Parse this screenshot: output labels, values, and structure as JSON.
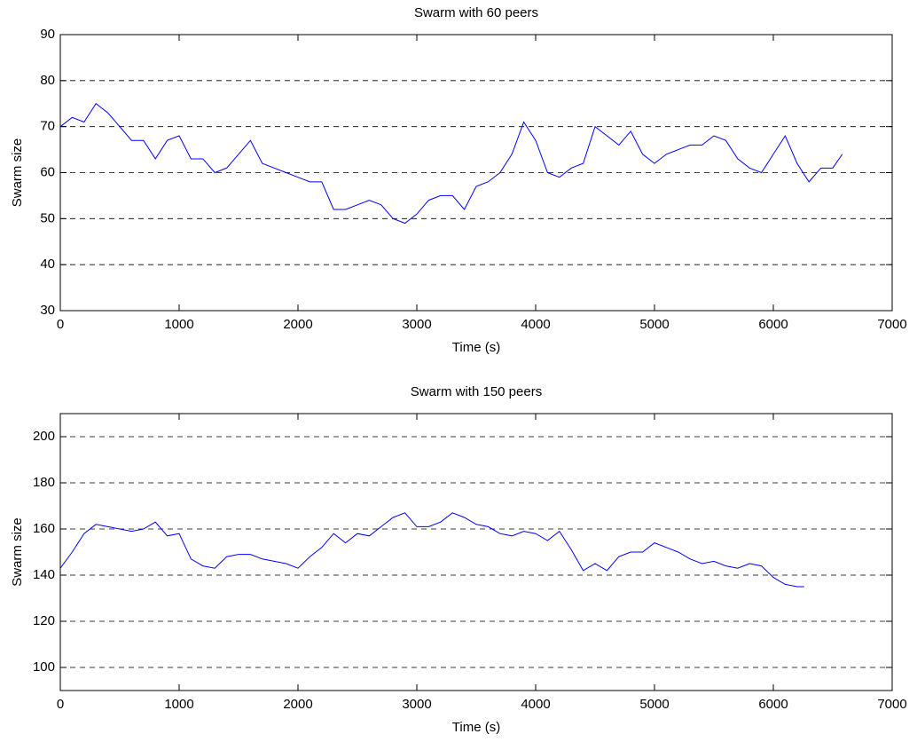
{
  "chart_data": [
    {
      "type": "line",
      "title": "Swarm with 60 peers",
      "x_label": "Time (s)",
      "y_label": "Swarm size",
      "x": [
        0,
        100,
        200,
        300,
        400,
        500,
        600,
        700,
        800,
        900,
        1000,
        1100,
        1200,
        1300,
        1400,
        1500,
        1600,
        1700,
        1800,
        1900,
        2000,
        2100,
        2200,
        2300,
        2400,
        2500,
        2600,
        2700,
        2800,
        2900,
        3000,
        3100,
        3200,
        3300,
        3400,
        3500,
        3600,
        3700,
        3800,
        3900,
        4000,
        4100,
        4200,
        4300,
        4400,
        4500,
        4600,
        4700,
        4800,
        4900,
        5000,
        5100,
        5200,
        5300,
        5400,
        5500,
        5600,
        5700,
        5800,
        5900,
        6000,
        6100,
        6200,
        6300,
        6400,
        6500,
        6580
      ],
      "values": [
        70,
        72,
        71,
        75,
        73,
        70,
        67,
        67,
        63,
        67,
        68,
        63,
        63,
        60,
        61,
        64,
        67,
        62,
        61,
        60,
        59,
        58,
        58,
        52,
        52,
        53,
        54,
        53,
        50,
        49,
        51,
        54,
        55,
        55,
        52,
        57,
        58,
        60,
        64,
        71,
        67,
        60,
        59,
        61,
        62,
        70,
        68,
        66,
        69,
        64,
        62,
        64,
        65,
        66,
        66,
        68,
        67,
        63,
        61,
        60,
        64,
        68,
        62,
        58,
        61,
        61,
        64
      ],
      "color": "#0000ff",
      "xlim": [
        0,
        7000
      ],
      "ylim": [
        30,
        90
      ],
      "xticks": [
        0,
        1000,
        2000,
        3000,
        4000,
        5000,
        6000,
        7000
      ],
      "yticks": [
        30,
        40,
        50,
        60,
        70,
        80,
        90
      ],
      "grid": true
    },
    {
      "type": "line",
      "title": "Swarm with 150 peers",
      "x_label": "Time (s)",
      "y_label": "Swarm size",
      "x": [
        0,
        100,
        200,
        300,
        400,
        500,
        600,
        700,
        800,
        900,
        1000,
        1100,
        1200,
        1300,
        1400,
        1500,
        1600,
        1700,
        1800,
        1900,
        2000,
        2100,
        2200,
        2300,
        2400,
        2500,
        2600,
        2700,
        2800,
        2900,
        3000,
        3100,
        3200,
        3300,
        3400,
        3500,
        3600,
        3700,
        3800,
        3900,
        4000,
        4100,
        4200,
        4300,
        4400,
        4500,
        4600,
        4700,
        4800,
        4900,
        5000,
        5100,
        5200,
        5300,
        5400,
        5500,
        5600,
        5700,
        5800,
        5900,
        6000,
        6100,
        6200,
        6260
      ],
      "values": [
        143,
        150,
        158,
        162,
        161,
        160,
        159,
        160,
        163,
        157,
        158,
        147,
        144,
        143,
        148,
        149,
        149,
        147,
        146,
        145,
        143,
        148,
        152,
        158,
        154,
        158,
        157,
        161,
        165,
        167,
        161,
        161,
        163,
        167,
        165,
        162,
        161,
        158,
        157,
        159,
        158,
        155,
        159,
        151,
        142,
        145,
        142,
        148,
        150,
        150,
        154,
        152,
        150,
        147,
        145,
        146,
        144,
        143,
        145,
        144,
        139,
        136,
        135,
        135
      ],
      "color": "#0000ff",
      "xlim": [
        0,
        7000
      ],
      "ylim": [
        90,
        210
      ],
      "xticks": [
        0,
        1000,
        2000,
        3000,
        4000,
        5000,
        6000,
        7000
      ],
      "yticks": [
        100,
        120,
        140,
        160,
        180,
        200
      ],
      "grid": true
    }
  ]
}
